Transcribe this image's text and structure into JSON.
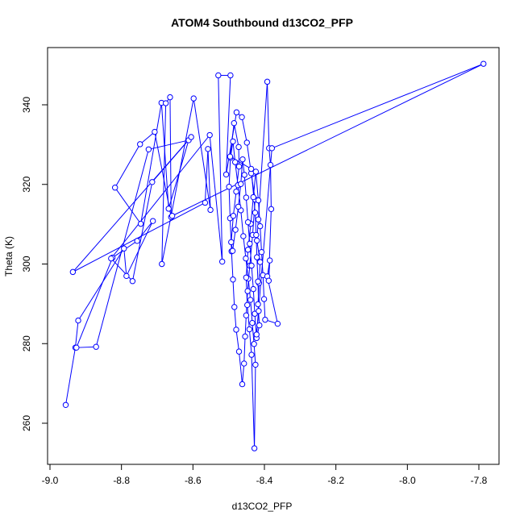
{
  "chart_data": {
    "type": "line",
    "title": "ATOM4 Southbound d13CO2_PFP",
    "xlabel": "d13CO2_PFP",
    "ylabel": "Theta (K)",
    "xlim": [
      -9.0,
      -7.75
    ],
    "ylim": [
      250,
      350
    ],
    "xticks": [
      "-9.0",
      "-8.8",
      "-8.6",
      "-8.4",
      "-8.2",
      "-8.0",
      "-7.8"
    ],
    "yticks": [
      "260",
      "280",
      "300",
      "320",
      "340"
    ],
    "series": [
      {
        "color": "#0000ff",
        "marker": "open-circle",
        "points": [
          [
            -8.956,
            264.6
          ],
          [
            -8.929,
            279.0
          ],
          [
            -8.921,
            285.8
          ],
          [
            -8.793,
            303.9
          ],
          [
            -8.786,
            297.0
          ],
          [
            -8.712,
            310.8
          ],
          [
            -8.756,
            305.8
          ],
          [
            -8.825,
            301.6
          ],
          [
            -8.926,
            279.0
          ],
          [
            -8.871,
            279.2
          ],
          [
            -8.724,
            328.8
          ],
          [
            -8.612,
            331.1
          ],
          [
            -8.668,
            313.9
          ],
          [
            -8.688,
            340.5
          ],
          [
            -8.746,
            310.1
          ],
          [
            -8.818,
            319.2
          ],
          [
            -8.748,
            330.1
          ],
          [
            -8.707,
            333.2
          ],
          [
            -8.661,
            311.8
          ],
          [
            -8.664,
            341.9
          ],
          [
            -8.676,
            340.4
          ],
          [
            -8.687,
            300.0
          ],
          [
            -8.598,
            341.6
          ],
          [
            -8.551,
            313.6
          ],
          [
            -8.558,
            328.9
          ],
          [
            -8.566,
            315.4
          ],
          [
            -8.936,
            298.0
          ],
          [
            -8.605,
            331.9
          ],
          [
            -8.714,
            320.6
          ],
          [
            -8.769,
            295.7
          ],
          [
            -8.829,
            301.4
          ],
          [
            -8.553,
            332.4
          ],
          [
            -8.518,
            300.6
          ],
          [
            -8.529,
            347.4
          ],
          [
            -8.495,
            347.4
          ],
          [
            -8.507,
            322.5
          ],
          [
            -8.478,
            338.1
          ],
          [
            -8.463,
            336.9
          ],
          [
            -8.449,
            330.5
          ],
          [
            -8.437,
            322.8
          ],
          [
            -8.426,
            316.2
          ],
          [
            -8.433,
            307.3
          ],
          [
            -8.441,
            299.6
          ],
          [
            -8.447,
            293.2
          ],
          [
            -8.451,
            287.1
          ],
          [
            -8.454,
            281.8
          ],
          [
            -8.457,
            275.0
          ],
          [
            -8.462,
            269.8
          ],
          [
            -8.471,
            278.0
          ],
          [
            -8.479,
            283.5
          ],
          [
            -8.484,
            289.2
          ],
          [
            -8.488,
            296.1
          ],
          [
            -8.492,
            303.2
          ],
          [
            -8.496,
            311.5
          ],
          [
            -8.499,
            319.4
          ],
          [
            -8.495,
            326.7
          ],
          [
            -8.488,
            330.8
          ],
          [
            -8.482,
            325.6
          ],
          [
            -8.474,
            319.8
          ],
          [
            -8.466,
            313.5
          ],
          [
            -8.459,
            307.0
          ],
          [
            -8.452,
            301.4
          ],
          [
            -8.445,
            296.3
          ],
          [
            -8.439,
            291.0
          ],
          [
            -8.434,
            285.2
          ],
          [
            -8.429,
            279.9
          ],
          [
            -8.425,
            274.7
          ],
          [
            -8.428,
            253.7
          ],
          [
            -8.436,
            277.2
          ],
          [
            -8.442,
            283.6
          ],
          [
            -8.448,
            289.7
          ],
          [
            -8.451,
            296.6
          ],
          [
            -8.446,
            303.6
          ],
          [
            -8.438,
            310.1
          ],
          [
            -8.431,
            316.8
          ],
          [
            -8.424,
            323.2
          ],
          [
            -8.417,
            316.0
          ],
          [
            -8.412,
            309.5
          ],
          [
            -8.408,
            303.0
          ],
          [
            -8.404,
            297.2
          ],
          [
            -8.401,
            291.2
          ],
          [
            -8.398,
            286.0
          ],
          [
            -8.363,
            285.0
          ],
          [
            -8.392,
            296.9
          ],
          [
            -8.385,
            300.9
          ],
          [
            -8.388,
            295.8
          ],
          [
            -8.381,
            313.8
          ],
          [
            -8.383,
            324.9
          ],
          [
            -8.387,
            329.1
          ],
          [
            -8.392,
            345.8
          ],
          [
            -8.417,
            311.2
          ],
          [
            -8.421,
            305.9
          ],
          [
            -8.412,
            300.5
          ],
          [
            -8.415,
            295.2
          ],
          [
            -8.418,
            289.9
          ],
          [
            -8.414,
            284.6
          ],
          [
            -8.422,
            281.4
          ],
          [
            -8.427,
            287.5
          ],
          [
            -8.431,
            293.7
          ],
          [
            -8.436,
            299.6
          ],
          [
            -8.441,
            305.1
          ],
          [
            -8.446,
            310.5
          ],
          [
            -8.451,
            316.7
          ],
          [
            -8.456,
            322.4
          ],
          [
            -8.461,
            326.3
          ],
          [
            -8.466,
            320.1
          ],
          [
            -8.473,
            314.4
          ],
          [
            -8.481,
            308.6
          ],
          [
            -8.489,
            303.3
          ],
          [
            -8.493,
            305.5
          ],
          [
            -8.487,
            312.1
          ],
          [
            -8.479,
            318.2
          ],
          [
            -8.471,
            324.5
          ],
          [
            -8.472,
            329.4
          ],
          [
            -8.485,
            335.4
          ],
          [
            -8.496,
            327.0
          ],
          [
            -8.437,
            323.9
          ],
          [
            -8.426,
            312.9
          ],
          [
            -8.423,
            307.3
          ],
          [
            -8.421,
            301.7
          ],
          [
            -8.418,
            295.6
          ],
          [
            -8.416,
            288.2
          ],
          [
            -8.422,
            282.3
          ],
          [
            -8.379,
            329.1
          ],
          [
            -7.787,
            350.3
          ],
          [
            -8.658,
            312.1
          ]
        ]
      }
    ]
  }
}
